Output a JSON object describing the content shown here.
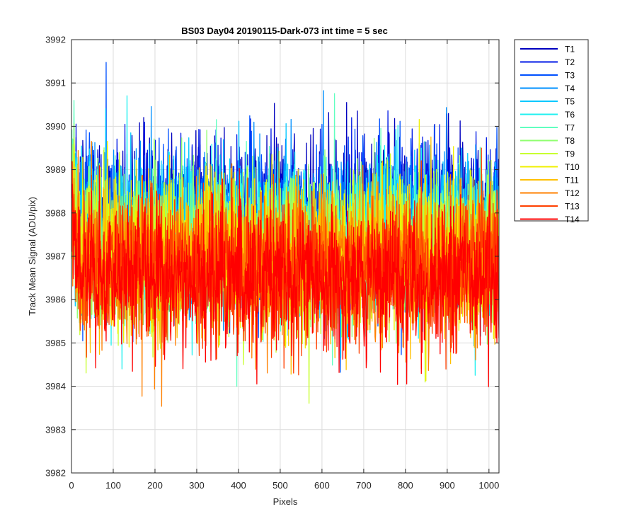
{
  "chart_data": {
    "type": "line",
    "title": "BS03 Day04 20190115-Dark-073 int time = 5 sec",
    "xlabel": "Pixels",
    "ylabel": "Track Mean Signal (ADU/pix)",
    "xlim": [
      0,
      1024
    ],
    "ylim": [
      3982,
      3992
    ],
    "xticks": [
      0,
      100,
      200,
      300,
      400,
      500,
      600,
      700,
      800,
      900,
      1000
    ],
    "yticks": [
      3982,
      3983,
      3984,
      3985,
      3986,
      3987,
      3988,
      3989,
      3990,
      3991,
      3992
    ],
    "grid": true,
    "legend_position": "outside-top-right",
    "x_count": 1024,
    "series": [
      {
        "name": "T1",
        "color": "#0000bf",
        "mean": 3988.0,
        "spread": 0.85
      },
      {
        "name": "T2",
        "color": "#0019e6",
        "mean": 3987.85,
        "spread": 0.85
      },
      {
        "name": "T3",
        "color": "#0050ff",
        "mean": 3987.7,
        "spread": 0.85
      },
      {
        "name": "T4",
        "color": "#0090ff",
        "mean": 3987.6,
        "spread": 0.85
      },
      {
        "name": "T5",
        "color": "#00c8ff",
        "mean": 3987.5,
        "spread": 0.85
      },
      {
        "name": "T6",
        "color": "#20f0f0",
        "mean": 3987.4,
        "spread": 0.85
      },
      {
        "name": "T7",
        "color": "#60ffc0",
        "mean": 3987.3,
        "spread": 0.85
      },
      {
        "name": "T8",
        "color": "#90ff70",
        "mean": 3987.2,
        "spread": 0.85
      },
      {
        "name": "T9",
        "color": "#c8ff30",
        "mean": 3987.1,
        "spread": 0.85
      },
      {
        "name": "T10",
        "color": "#f0f000",
        "mean": 3987.0,
        "spread": 0.85
      },
      {
        "name": "T11",
        "color": "#ffc000",
        "mean": 3986.9,
        "spread": 0.85
      },
      {
        "name": "T12",
        "color": "#ff8000",
        "mean": 3986.8,
        "spread": 0.85
      },
      {
        "name": "T13",
        "color": "#ff4000",
        "mean": 3986.65,
        "spread": 0.85
      },
      {
        "name": "T14",
        "color": "#ff0000",
        "mean": 3986.5,
        "spread": 0.85
      }
    ]
  }
}
